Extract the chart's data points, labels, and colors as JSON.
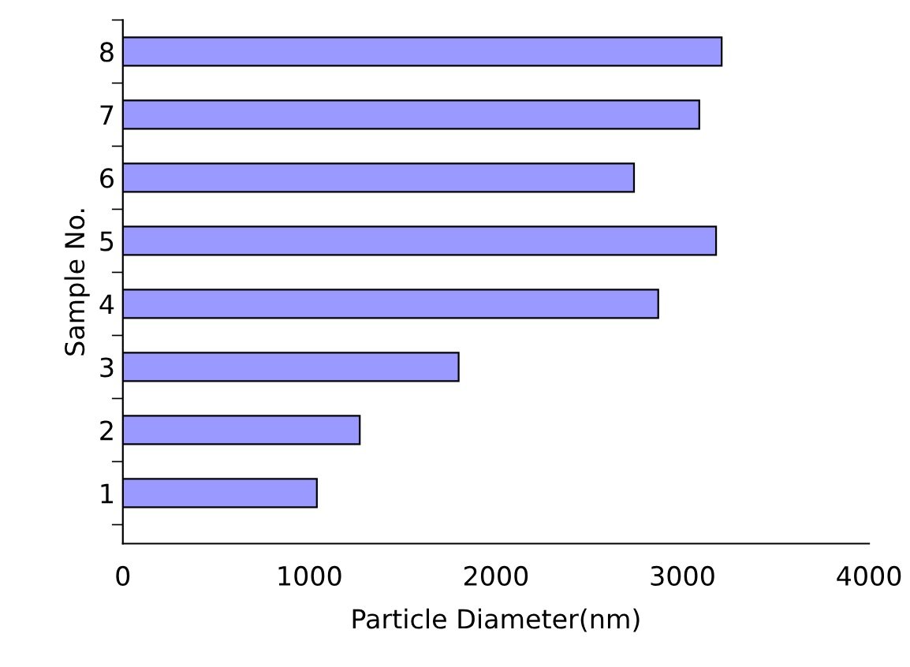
{
  "chart_data": {
    "type": "bar",
    "orientation": "horizontal",
    "categories": [
      "8",
      "7",
      "6",
      "5",
      "4",
      "3",
      "2",
      "1"
    ],
    "values": [
      3210,
      3090,
      2740,
      3180,
      2870,
      1800,
      1270,
      1040
    ],
    "color": "#9999ff",
    "xlabel": "Particle Diameter(nm)",
    "ylabel": "Sample No.",
    "xlim": [
      0,
      4000
    ],
    "xticks": [
      0,
      1000,
      2000,
      3000,
      4000
    ],
    "grid": false,
    "legend": false
  }
}
